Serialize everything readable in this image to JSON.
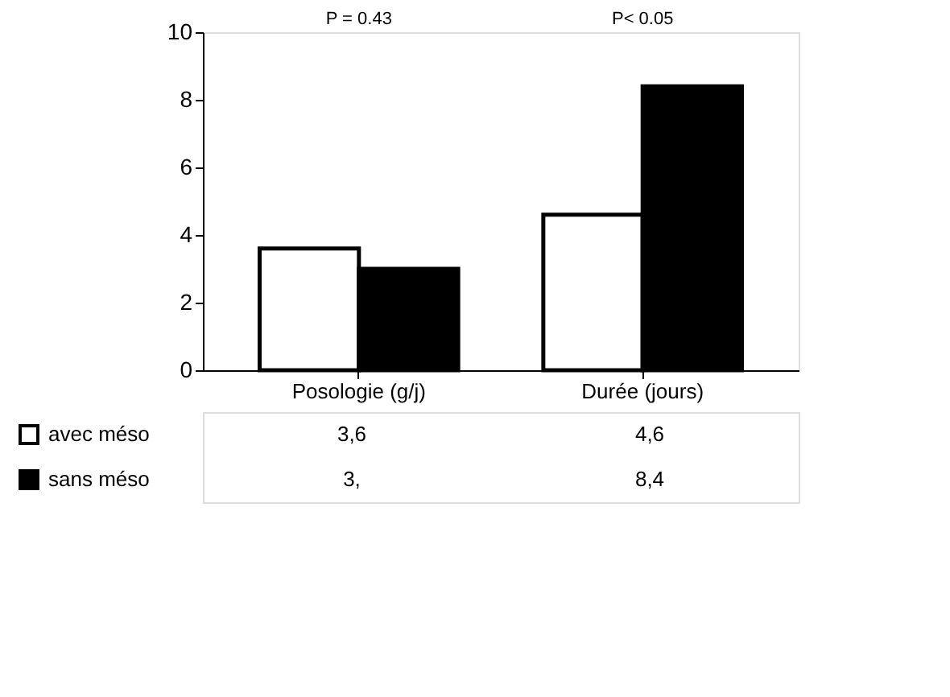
{
  "chart_data": {
    "type": "bar",
    "categories": [
      "Posologie (g/j)",
      "Durée (jours)"
    ],
    "series": [
      {
        "name": "avec méso",
        "color": "#ffffff",
        "values": [
          3.6,
          4.6
        ],
        "value_labels": [
          "3,6",
          "4,6"
        ]
      },
      {
        "name": "sans méso",
        "color": "#000000",
        "values": [
          3,
          8.4
        ],
        "value_labels": [
          "3,",
          "8,4"
        ]
      }
    ],
    "ylim": [
      0,
      10
    ],
    "yticks": [
      0,
      2,
      4,
      6,
      8,
      10
    ],
    "grid": false,
    "legend": "bottom left",
    "annotations": [
      "P = 0.43",
      "P< 0.05"
    ]
  }
}
